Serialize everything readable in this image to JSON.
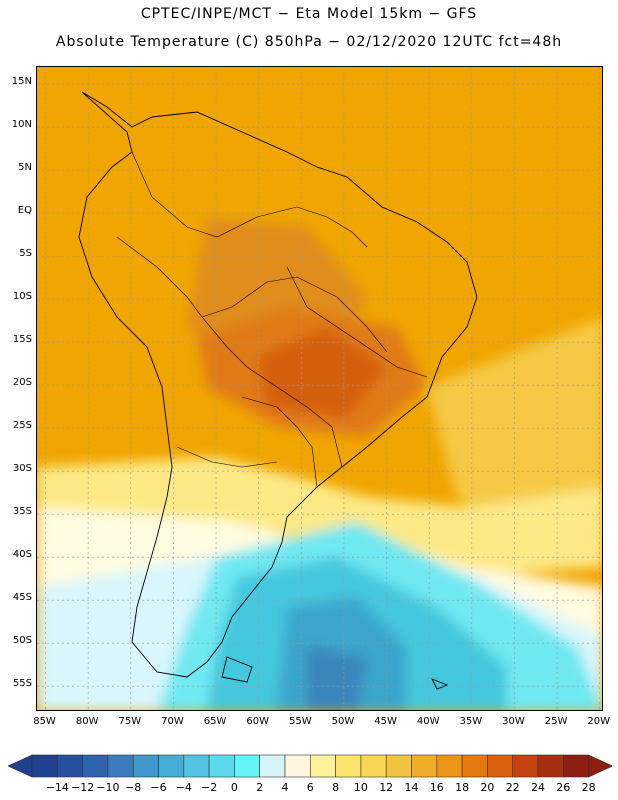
{
  "header": {
    "line1": "CPTEC/INPE/MCT −  Eta Model 15km − GFS",
    "line2": "Absolute Temperature (C) 850hPa − 02/12/2020 12UTC fct=48h"
  },
  "map": {
    "lat_labels": [
      "15N",
      "10N",
      "5N",
      "EQ",
      "5S",
      "10S",
      "15S",
      "20S",
      "25S",
      "30S",
      "35S",
      "40S",
      "45S",
      "50S",
      "55S"
    ],
    "lat_values": [
      15,
      10,
      5,
      0,
      -5,
      -10,
      -15,
      -20,
      -25,
      -30,
      -35,
      -40,
      -45,
      -50,
      -55
    ],
    "lon_labels": [
      "85W",
      "80W",
      "75W",
      "70W",
      "65W",
      "60W",
      "55W",
      "50W",
      "45W",
      "40W",
      "35W",
      "30W",
      "25W",
      "20W"
    ],
    "lon_values": [
      -85,
      -80,
      -75,
      -70,
      -65,
      -60,
      -55,
      -50,
      -45,
      -40,
      -35,
      -30,
      -25,
      -20
    ],
    "lon_range": [
      -86,
      -19.5
    ],
    "lat_range": [
      -58,
      17
    ],
    "field_colors": {
      "warm_base": "#f0a500",
      "hot": "#e07a14",
      "hotter": "#d45f10",
      "mild": "#f5c945",
      "pale": "#fce986",
      "cream": "#fffbe0",
      "cyan_light": "#d8f6fb",
      "cyan": "#6fe8f2",
      "teal": "#44c8dd",
      "blue_mid": "#3ba5cc",
      "blue_dark": "#3a86bd"
    }
  },
  "legend": {
    "ticks": [
      "−14",
      "−12",
      "−10",
      "−8",
      "−6",
      "−4",
      "−2",
      "0",
      "2",
      "4",
      "6",
      "8",
      "10",
      "12",
      "14",
      "16",
      "18",
      "20",
      "22",
      "24",
      "26",
      "28"
    ],
    "colors": [
      "#1f3f8f",
      "#26519e",
      "#2d64ad",
      "#3a7cbe",
      "#3f97cc",
      "#45aed8",
      "#52c3e3",
      "#5ed9ec",
      "#62f3f7",
      "#d5f5fb",
      "#fff6e0",
      "#fdf29a",
      "#fbe56e",
      "#f6d654",
      "#f0c440",
      "#f0ad2c",
      "#eb9417",
      "#e27a10",
      "#d9600d",
      "#c2430d",
      "#a53010",
      "#8c1f12"
    ]
  }
}
